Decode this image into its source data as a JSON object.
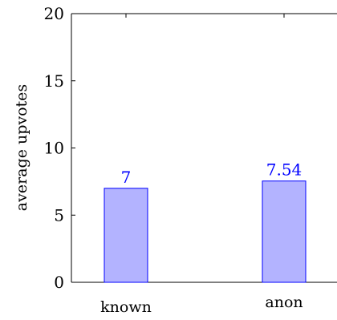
{
  "chart_data": {
    "type": "bar",
    "categories": [
      "known",
      "anon"
    ],
    "values": [
      7,
      7.54
    ],
    "value_labels": [
      "7",
      "7.54"
    ],
    "title": "",
    "xlabel": "",
    "ylabel": "average upvotes",
    "ylim": [
      0,
      20
    ],
    "yticks": [
      0,
      5,
      10,
      15,
      20
    ],
    "grid": false,
    "legend": "none",
    "colors": {
      "bar_fill": "#b3b3ff",
      "bar_stroke": "#0000ff",
      "value_label": "#0000ff",
      "axis": "#000000",
      "text": "#000000"
    }
  }
}
